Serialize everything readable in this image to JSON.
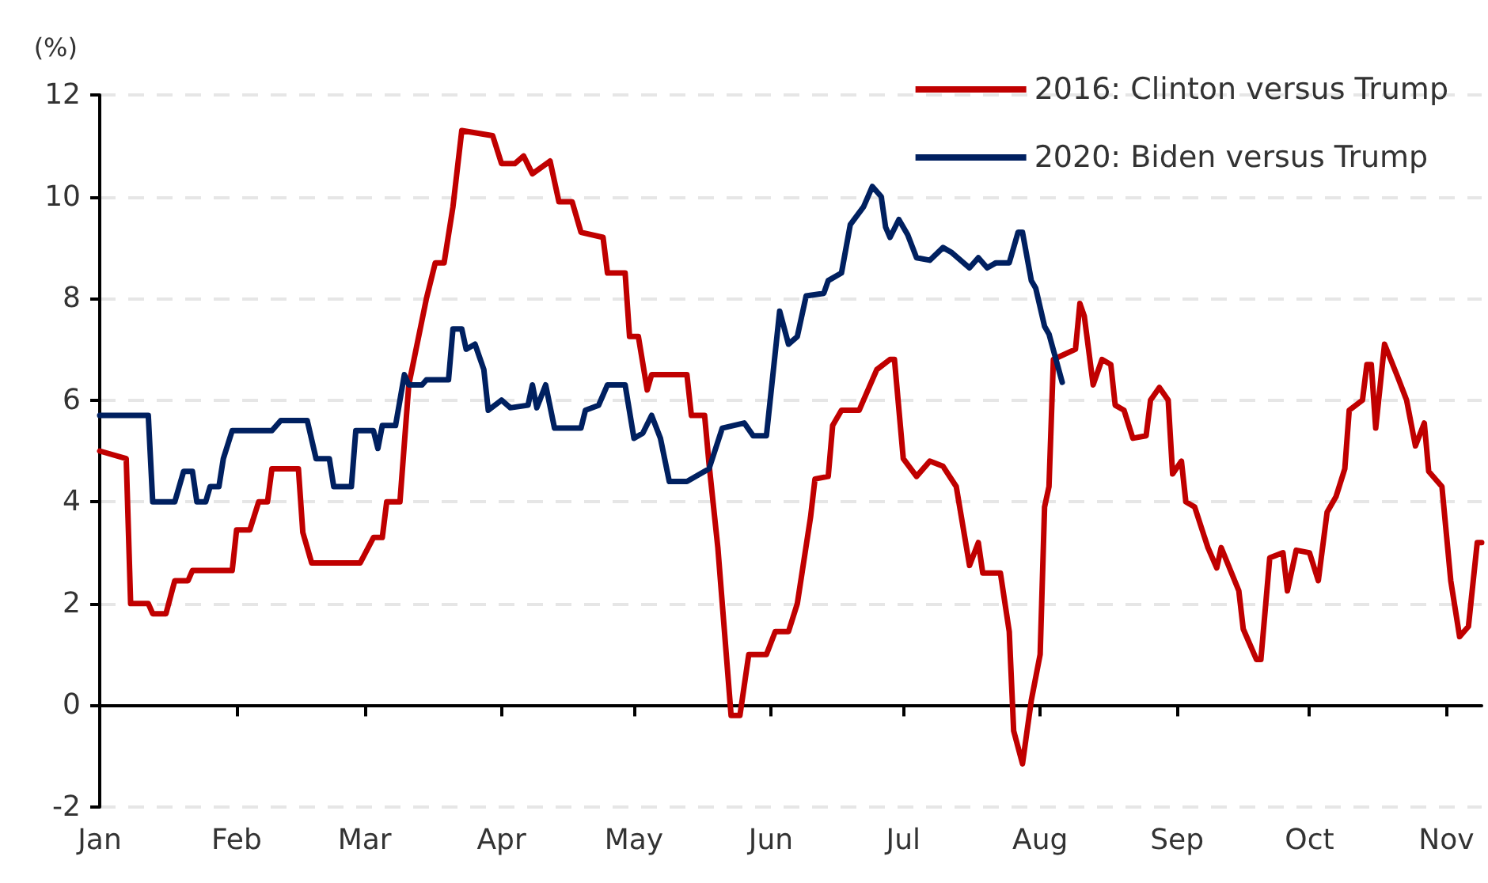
{
  "chart_data": {
    "type": "line",
    "ylabel": "(%)",
    "legend": "top right",
    "grid": "y",
    "marker": "none",
    "line_style": "solid",
    "xlim": [
      "--01-01",
      "--11-09"
    ],
    "xticks": [
      {
        "value": "--01-01",
        "label": "Jan"
      },
      {
        "value": "--02-01",
        "label": "Feb"
      },
      {
        "value": "--03-01",
        "label": "Mar"
      },
      {
        "value": "--04-01",
        "label": "Apr"
      },
      {
        "value": "--05-01",
        "label": "May"
      },
      {
        "value": "--06-01",
        "label": "Jun"
      },
      {
        "value": "--07-01",
        "label": "Jul"
      },
      {
        "value": "--08-01",
        "label": "Aug"
      },
      {
        "value": "--09-01",
        "label": "Sep"
      },
      {
        "value": "--10-01",
        "label": "Oct"
      },
      {
        "value": "--11-01",
        "label": "Nov"
      }
    ],
    "ylim": [
      -2,
      12
    ],
    "yticks": [
      -2,
      0,
      2,
      4,
      6,
      8,
      10,
      12
    ],
    "series": [
      {
        "name": "2016: Clinton versus Trump",
        "color": "#c00000",
        "x": [
          "--01-01",
          "--01-07",
          "--01-08",
          "--01-12",
          "--01-13",
          "--01-16",
          "--01-18",
          "--01-21",
          "--01-22",
          "--01-31",
          "--02-01",
          "--02-04",
          "--02-06",
          "--02-08",
          "--02-09",
          "--02-15",
          "--02-16",
          "--02-18",
          "--02-29",
          "--03-03",
          "--03-05",
          "--03-06",
          "--03-09",
          "--03-11",
          "--03-15",
          "--03-17",
          "--03-19",
          "--03-21",
          "--03-23",
          "--03-30",
          "--04-01",
          "--04-04",
          "--04-06",
          "--04-08",
          "--04-12",
          "--04-14",
          "--04-17",
          "--04-19",
          "--04-24",
          "--04-25",
          "--04-29",
          "--04-30",
          "--05-02",
          "--05-04",
          "--05-05",
          "--05-13",
          "--05-14",
          "--05-17",
          "--05-18",
          "--05-20",
          "--05-23",
          "--05-25",
          "--05-27",
          "--05-31",
          "--06-02",
          "--06-05",
          "--06-07",
          "--06-10",
          "--06-11",
          "--06-14",
          "--06-15",
          "--06-17",
          "--06-21",
          "--06-25",
          "--06-28",
          "--06-29",
          "--07-01",
          "--07-04",
          "--07-07",
          "--07-10",
          "--07-13",
          "--07-16",
          "--07-18",
          "--07-19",
          "--07-23",
          "--07-25",
          "--07-26",
          "--07-28",
          "--07-30",
          "--08-01",
          "--08-02",
          "--08-03",
          "--08-04",
          "--08-09",
          "--08-10",
          "--08-11",
          "--08-13",
          "--08-15",
          "--08-17",
          "--08-18",
          "--08-20",
          "--08-22",
          "--08-25",
          "--08-26",
          "--08-28",
          "--08-30",
          "--08-31",
          "--09-02",
          "--09-03",
          "--09-05",
          "--09-08",
          "--09-10",
          "--09-11",
          "--09-15",
          "--09-16",
          "--09-19",
          "--09-20",
          "--09-22",
          "--09-25",
          "--09-26",
          "--09-28",
          "--10-01",
          "--10-03",
          "--10-05",
          "--10-07",
          "--10-09",
          "--10-10",
          "--10-13",
          "--10-14",
          "--10-15",
          "--10-16",
          "--10-18",
          "--10-21",
          "--10-23",
          "--10-25",
          "--10-27",
          "--10-28",
          "--10-31",
          "--11-02",
          "--11-04",
          "--11-06",
          "--11-08",
          "--11-09"
        ],
        "values": [
          5.0,
          4.85,
          2.0,
          2.0,
          1.8,
          1.8,
          2.45,
          2.45,
          2.65,
          2.65,
          3.45,
          3.45,
          4.0,
          4.0,
          4.65,
          4.65,
          3.4,
          2.8,
          2.8,
          3.3,
          3.3,
          4.0,
          4.0,
          6.3,
          8.0,
          8.7,
          8.7,
          9.8,
          11.3,
          11.2,
          10.65,
          10.65,
          10.8,
          10.45,
          10.7,
          9.9,
          9.9,
          9.3,
          9.2,
          8.5,
          8.5,
          7.25,
          7.25,
          6.2,
          6.5,
          6.5,
          5.7,
          5.7,
          4.75,
          3.1,
          -0.2,
          -0.2,
          1.0,
          1.0,
          1.45,
          1.45,
          2.0,
          3.7,
          4.45,
          4.5,
          5.5,
          5.8,
          5.8,
          6.6,
          6.8,
          6.8,
          4.85,
          4.5,
          4.8,
          4.7,
          4.3,
          2.75,
          3.2,
          2.6,
          2.6,
          1.45,
          -0.5,
          -1.15,
          0.1,
          1.0,
          3.9,
          4.3,
          6.8,
          7.0,
          7.9,
          7.65,
          6.3,
          6.8,
          6.7,
          5.9,
          5.8,
          5.25,
          5.3,
          6.0,
          6.25,
          6.0,
          4.55,
          4.8,
          4.0,
          3.9,
          3.1,
          2.7,
          3.1,
          2.25,
          1.5,
          0.9,
          0.9,
          2.9,
          3.0,
          2.25,
          3.05,
          3.0,
          2.45,
          3.8,
          4.1,
          4.65,
          5.8,
          6.0,
          6.7,
          6.7,
          5.45,
          7.1,
          6.45,
          6.0,
          5.1,
          5.55,
          4.6,
          4.3,
          2.45,
          1.35,
          1.55,
          3.2,
          3.2
        ]
      },
      {
        "name": "2020: Biden versus Trump",
        "color": "#002060",
        "x": [
          "--01-01",
          "--01-12",
          "--01-13",
          "--01-18",
          "--01-20",
          "--01-22",
          "--01-23",
          "--01-25",
          "--01-26",
          "--01-28",
          "--01-29",
          "--01-31",
          "--02-09",
          "--02-11",
          "--02-17",
          "--02-19",
          "--02-22",
          "--02-23",
          "--02-27",
          "--02-28",
          "--03-03",
          "--03-04",
          "--03-05",
          "--03-08",
          "--03-10",
          "--03-11",
          "--03-14",
          "--03-15",
          "--03-20",
          "--03-21",
          "--03-23",
          "--03-24",
          "--03-26",
          "--03-28",
          "--03-29",
          "--04-01",
          "--04-03",
          "--04-07",
          "--04-08",
          "--04-09",
          "--04-11",
          "--04-13",
          "--04-19",
          "--04-20",
          "--04-23",
          "--04-25",
          "--04-29",
          "--05-01",
          "--05-03",
          "--05-05",
          "--05-07",
          "--05-09",
          "--05-13",
          "--05-18",
          "--05-21",
          "--05-26",
          "--05-28",
          "--05-31",
          "--06-03",
          "--06-05",
          "--06-07",
          "--06-09",
          "--06-13",
          "--06-14",
          "--06-17",
          "--06-19",
          "--06-22",
          "--06-24",
          "--06-26",
          "--06-27",
          "--06-28",
          "--06-30",
          "--07-02",
          "--07-04",
          "--07-07",
          "--07-10",
          "--07-12",
          "--07-16",
          "--07-18",
          "--07-20",
          "--07-22",
          "--07-25",
          "--07-27",
          "--07-28",
          "--07-30",
          "--07-31",
          "--08-02",
          "--08-03",
          "--08-06"
        ],
        "values": [
          5.7,
          5.7,
          4.0,
          4.0,
          4.6,
          4.6,
          4.0,
          4.0,
          4.3,
          4.3,
          4.85,
          5.4,
          5.4,
          5.6,
          5.6,
          4.85,
          4.85,
          4.3,
          4.3,
          5.4,
          5.4,
          5.05,
          5.5,
          5.5,
          6.5,
          6.3,
          6.3,
          6.4,
          6.4,
          7.4,
          7.4,
          7.0,
          7.1,
          6.6,
          5.8,
          6.0,
          5.85,
          5.9,
          6.3,
          5.85,
          6.3,
          5.45,
          5.45,
          5.8,
          5.9,
          6.3,
          6.3,
          5.25,
          5.35,
          5.7,
          5.25,
          4.4,
          4.4,
          4.65,
          5.45,
          5.55,
          5.3,
          5.3,
          7.75,
          7.1,
          7.25,
          8.05,
          8.1,
          8.35,
          8.5,
          9.45,
          9.8,
          10.2,
          10.0,
          9.4,
          9.2,
          9.55,
          9.25,
          8.8,
          8.75,
          9.0,
          8.9,
          8.6,
          8.8,
          8.6,
          8.7,
          8.7,
          9.3,
          9.3,
          8.35,
          8.2,
          7.45,
          7.3,
          6.35
        ]
      }
    ]
  }
}
